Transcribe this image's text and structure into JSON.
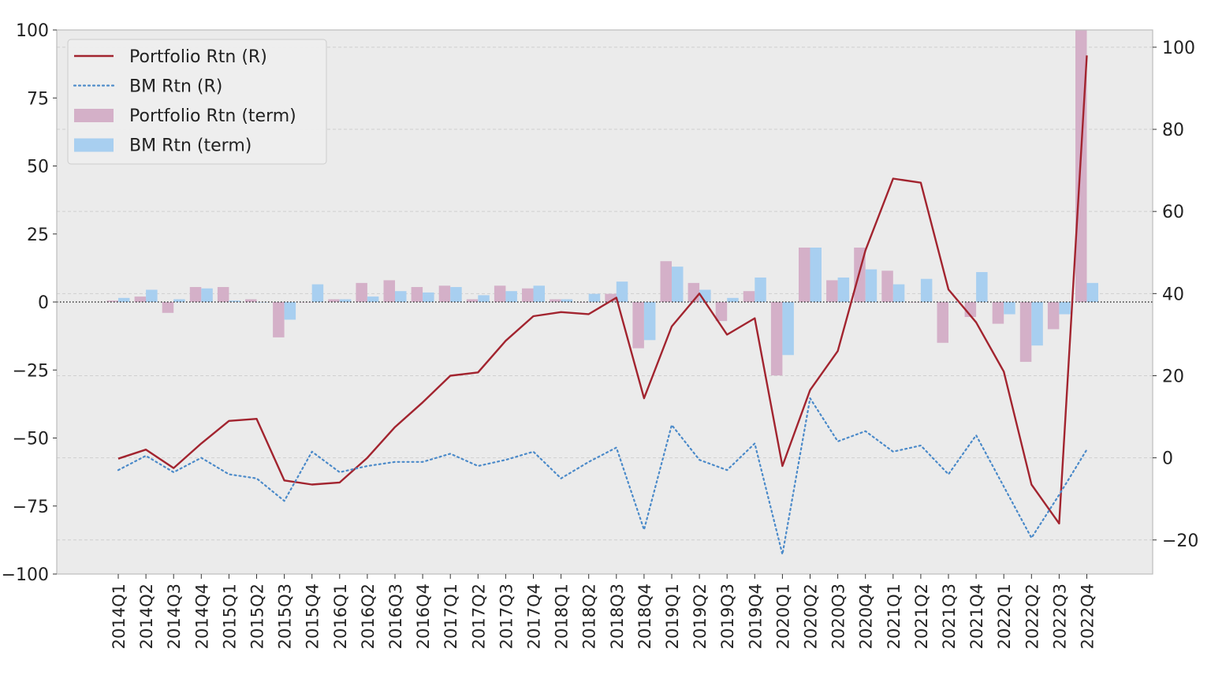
{
  "chart_data": {
    "type": "bar+line",
    "title": "",
    "xlabel": "",
    "ylabel": "",
    "ylabel_right": "",
    "categories": [
      "2014Q1",
      "2014Q2",
      "2014Q3",
      "2014Q4",
      "2015Q1",
      "2015Q2",
      "2015Q3",
      "2015Q4",
      "2016Q1",
      "2016Q2",
      "2016Q3",
      "2016Q4",
      "2017Q1",
      "2017Q2",
      "2017Q3",
      "2017Q4",
      "2018Q1",
      "2018Q2",
      "2018Q3",
      "2018Q4",
      "2019Q1",
      "2019Q2",
      "2019Q3",
      "2019Q4",
      "2020Q1",
      "2020Q2",
      "2020Q3",
      "2020Q4",
      "2021Q1",
      "2021Q2",
      "2021Q3",
      "2021Q4",
      "2022Q1",
      "2022Q2",
      "2022Q3",
      "2022Q4"
    ],
    "left_axis": {
      "ylim": [
        -100,
        100
      ],
      "ticks": [
        -100,
        -75,
        -50,
        -25,
        0,
        25,
        50,
        75,
        100
      ],
      "tick_labels": [
        "−100",
        "−75",
        "−50",
        "−25",
        "0",
        "25",
        "50",
        "75",
        "100"
      ]
    },
    "right_axis": {
      "ylim": [
        -28.3,
        104.2
      ],
      "ticks": [
        -20,
        0,
        20,
        40,
        60,
        80,
        100
      ],
      "tick_labels": [
        "−20",
        "0",
        "20",
        "40",
        "60",
        "80",
        "100"
      ]
    },
    "bar_series": [
      {
        "name": "Portfolio Rtn (term)",
        "color": "#d4b0c8",
        "axis": "left",
        "values": [
          0.5,
          2,
          -4,
          5.5,
          5.5,
          1,
          -13,
          0,
          1,
          7,
          8,
          5.5,
          6,
          1,
          6,
          5,
          1,
          0,
          3,
          -17,
          15,
          7,
          -7,
          4,
          -27,
          20,
          8,
          20,
          11.5,
          0,
          -15,
          -5.5,
          -8,
          -22,
          -10,
          100
        ]
      },
      {
        "name": "BM Rtn (term)",
        "color": "#a8cff0",
        "axis": "left",
        "values": [
          1.5,
          4.5,
          1,
          5,
          0.5,
          0,
          -6.5,
          6.5,
          1,
          2,
          4,
          3.5,
          5.5,
          2.5,
          4,
          6,
          1,
          3,
          7.5,
          -14,
          13,
          4.5,
          1.5,
          9,
          -19.5,
          20,
          9,
          12,
          6.5,
          8.5,
          0,
          11,
          -4.5,
          -16,
          -4.5,
          7
        ]
      }
    ],
    "line_series": [
      {
        "name": "Portfolio Rtn (R)",
        "color": "#a2242f",
        "style": "solid",
        "axis": "right",
        "values": [
          -0.2,
          2,
          -2.5,
          3.5,
          9,
          9.5,
          -5.5,
          -6.5,
          -6,
          0,
          7.5,
          13.5,
          20,
          20.8,
          28.5,
          34.5,
          35.5,
          35,
          39,
          14.5,
          32,
          40,
          30,
          34,
          -2,
          16.5,
          26,
          50.5,
          68,
          67,
          41,
          33,
          21,
          -6.5,
          -16,
          98
        ]
      },
      {
        "name": "BM Rtn (R)",
        "color": "#4b8ac9",
        "style": "dotted",
        "axis": "right",
        "values": [
          -3,
          0.5,
          -3.5,
          0,
          -4,
          -5,
          -10.5,
          1.5,
          -3.5,
          -2,
          -1,
          -1,
          1,
          -2,
          -0.5,
          1.5,
          -5,
          -1,
          2.5,
          -17.5,
          8,
          -0.5,
          -3,
          3.5,
          -23.5,
          14.5,
          4,
          6.5,
          1.5,
          3,
          -4,
          5.5,
          -7,
          -19.5,
          -9,
          2
        ]
      }
    ],
    "zero_line": {
      "style": "dotted",
      "color": "#333333"
    },
    "legend": {
      "location": "top-left",
      "entries": [
        {
          "label": "Portfolio Rtn (R)",
          "kind": "line-solid",
          "color": "#a2242f"
        },
        {
          "label": "BM Rtn (R)",
          "kind": "line-dotted",
          "color": "#4b8ac9"
        },
        {
          "label": "Portfolio Rtn (term)",
          "kind": "patch",
          "color": "#d4b0c8"
        },
        {
          "label": "BM Rtn (term)",
          "kind": "patch",
          "color": "#a8cff0"
        }
      ]
    },
    "grid": true,
    "background": "#ebebeb"
  }
}
